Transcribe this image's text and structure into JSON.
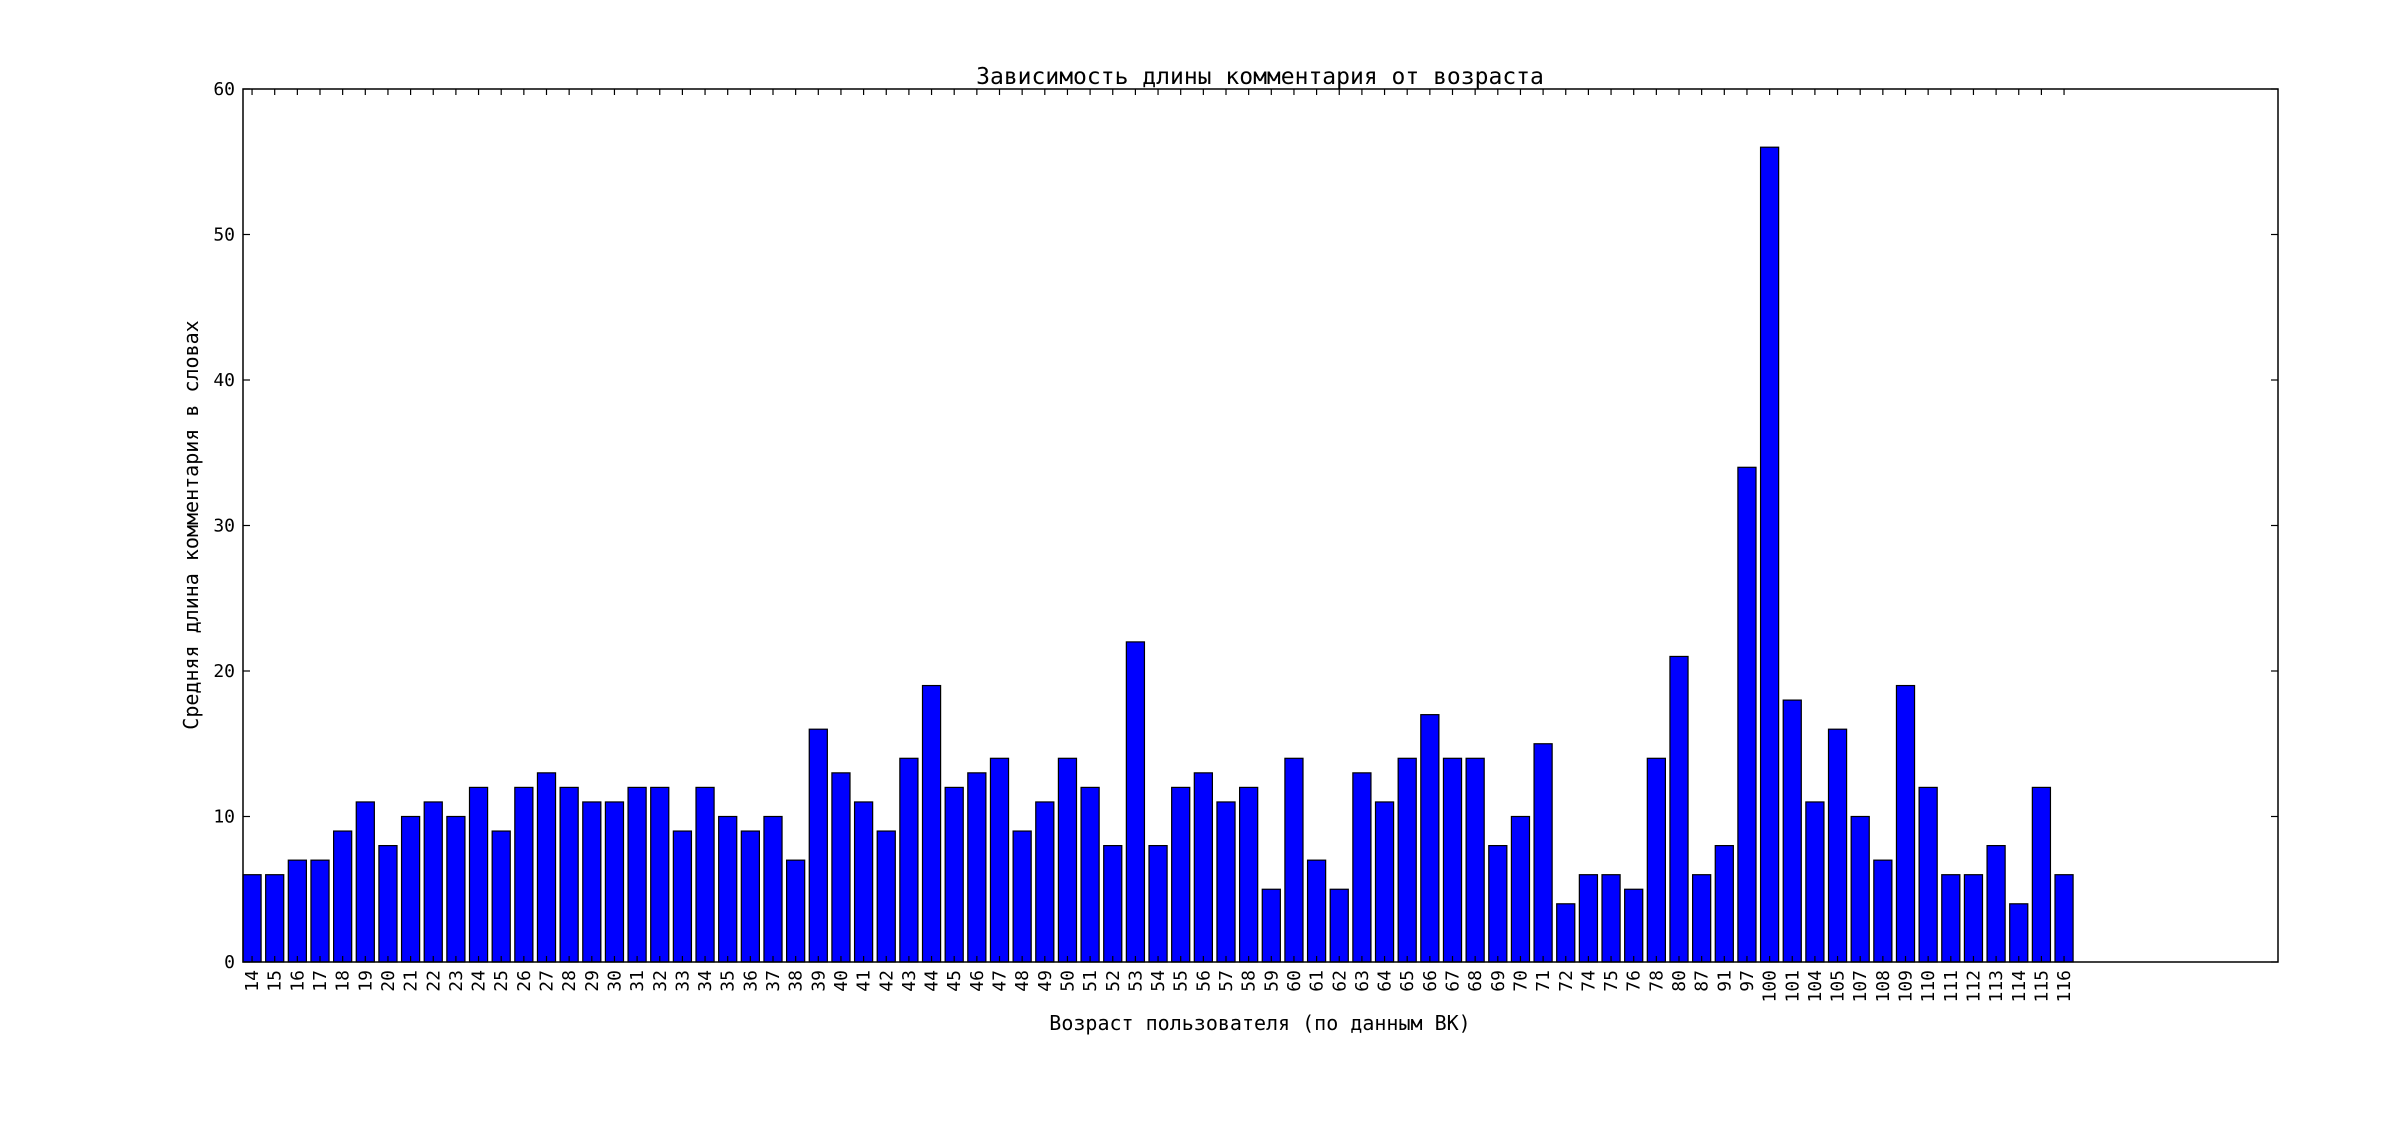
{
  "chart_data": {
    "type": "bar",
    "title": "Зависимость длины комментария от возраста",
    "xlabel": "Возраст пользователя (по данным ВК)",
    "ylabel": "Средняя длина комментария в словах",
    "ylim": [
      0,
      60
    ],
    "yticks": [
      0,
      10,
      20,
      30,
      40,
      50,
      60
    ],
    "bar_color": "#0000ff",
    "categories": [
      "14",
      "15",
      "16",
      "17",
      "18",
      "19",
      "20",
      "21",
      "22",
      "23",
      "24",
      "25",
      "26",
      "27",
      "28",
      "29",
      "30",
      "31",
      "32",
      "33",
      "34",
      "35",
      "36",
      "37",
      "38",
      "39",
      "40",
      "41",
      "42",
      "43",
      "44",
      "45",
      "46",
      "47",
      "48",
      "49",
      "50",
      "51",
      "52",
      "53",
      "54",
      "55",
      "56",
      "57",
      "58",
      "59",
      "60",
      "61",
      "62",
      "63",
      "64",
      "65",
      "66",
      "67",
      "68",
      "69",
      "70",
      "71",
      "72",
      "74",
      "75",
      "76",
      "78",
      "80",
      "87",
      "91",
      "97",
      "100",
      "101",
      "104",
      "105",
      "107",
      "108",
      "109",
      "110",
      "111",
      "112",
      "113",
      "114",
      "115",
      "116"
    ],
    "values": [
      6,
      6,
      7,
      7,
      9,
      11,
      8,
      10,
      11,
      10,
      12,
      9,
      12,
      13,
      12,
      11,
      11,
      12,
      12,
      9,
      12,
      10,
      9,
      10,
      7,
      16,
      13,
      11,
      9,
      14,
      19,
      12,
      13,
      14,
      9,
      11,
      14,
      12,
      8,
      22,
      8,
      12,
      13,
      11,
      12,
      5,
      14,
      7,
      5,
      13,
      11,
      14,
      17,
      14,
      14,
      8,
      10,
      15,
      4,
      6,
      6,
      5,
      14,
      21,
      6,
      8,
      34,
      56,
      18,
      11,
      16,
      10,
      7,
      19,
      12,
      6,
      6,
      8,
      4,
      12,
      6
    ],
    "grid": false,
    "legend": "none"
  }
}
